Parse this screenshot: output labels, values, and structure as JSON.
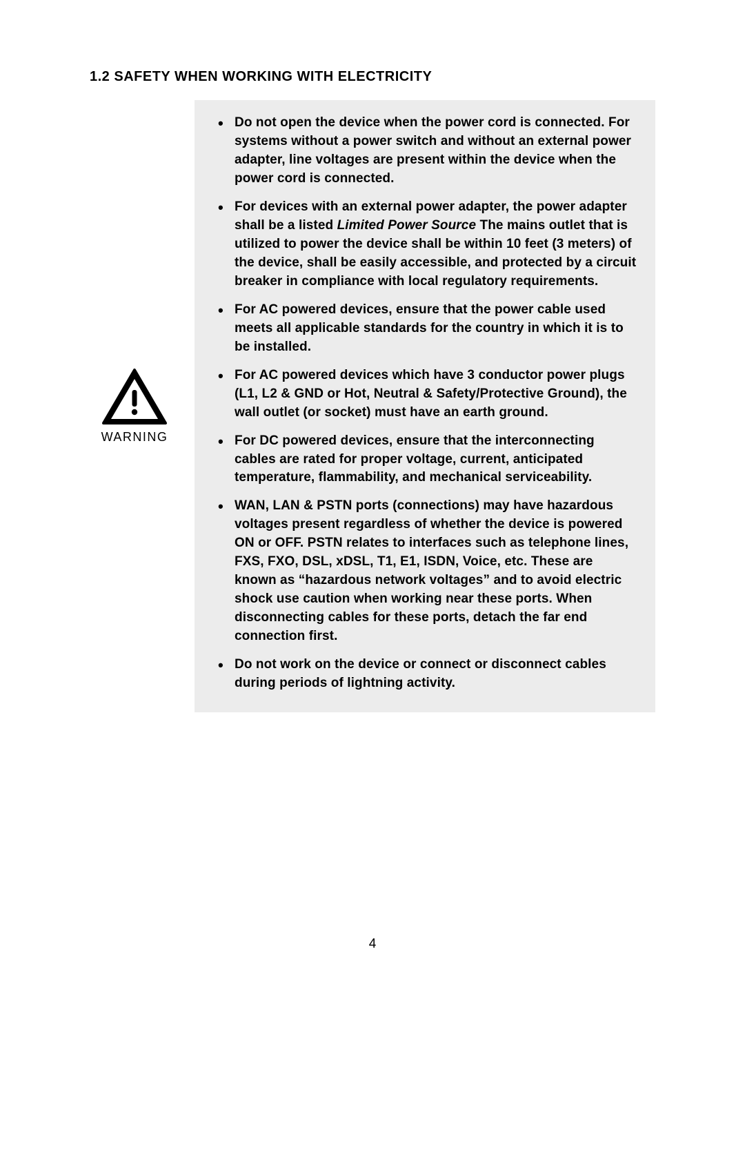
{
  "heading": "1.2 SAFETY WHEN WORKING WITH ELECTRICITY",
  "warning_label": "WARNING",
  "icon_color": "#000000",
  "box_bg": "#ececec",
  "page_bg": "#ffffff",
  "text_color": "#000000",
  "font_size_body": 19,
  "font_size_heading": 20,
  "bullets": [
    {
      "html": "Do not open the device when the power cord is connected. For systems without a power switch and without an external power adapter, line voltages are present within the device when the power cord is connected."
    },
    {
      "html": "For devices with an external power adapter, the power adapter shall be a listed <span class=\"italic\">Limited Power Source</span> The mains outlet that is utilized to power the device shall be within 10 feet (3 meters) of the device, shall be easily accessible, and protected by a circuit breaker in compliance with local regulatory requirements."
    },
    {
      "html": "For AC powered devices, ensure that the power cable used meets all applicable standards for the country in which it is to be installed."
    },
    {
      "html": "For AC powered devices which have 3 conductor power plugs (L1, L2 & GND or Hot, Neutral & Safety/Protective Ground), the wall outlet (or socket) must have an earth ground."
    },
    {
      "html": "For DC powered devices, ensure that the interconnecting cables are rated for proper voltage, current, anticipated temperature, flammability, and mechanical serviceability."
    },
    {
      "html": "WAN, LAN & PSTN ports (connections) may have hazardous voltages present regardless of whether the device is powered ON or OFF.  PSTN relates to interfaces such as telephone lines, FXS, FXO, DSL, xDSL, T1, E1, ISDN, Voice, etc. These are known as “hazardous network voltages” and to avoid electric shock use caution when working near these ports.  When disconnecting cables for these ports, detach the far end connection first."
    },
    {
      "html": "Do not work on the device or connect or disconnect cables during periods of lightning activity."
    }
  ],
  "page_number": "4"
}
